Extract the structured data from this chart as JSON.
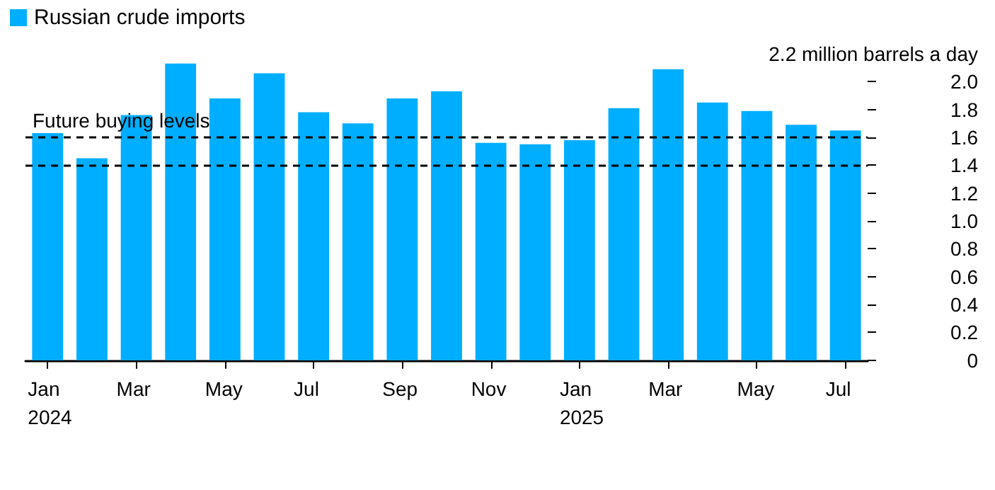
{
  "chart_data": {
    "type": "bar",
    "categories": [
      "Jan\n2024",
      null,
      "Mar",
      null,
      "May",
      null,
      "Jul",
      null,
      "Sep",
      null,
      "Nov",
      null,
      "Jan\n2025",
      null,
      "Mar",
      null,
      "May",
      null,
      "Jul"
    ],
    "series": [
      {
        "name": "Russian crude imports",
        "color": "#00aeff",
        "values": [
          1.63,
          1.45,
          1.76,
          2.13,
          1.88,
          2.06,
          1.78,
          1.7,
          1.88,
          1.93,
          1.56,
          1.55,
          1.58,
          1.81,
          2.09,
          1.85,
          1.79,
          1.69,
          1.65
        ]
      }
    ],
    "ylim": [
      0,
      2.2
    ],
    "yticks": [
      0,
      0.2,
      0.4,
      0.6,
      0.8,
      {
        "value": 1,
        "label": "1.0"
      },
      1.2,
      1.4,
      1.6,
      1.8,
      {
        "value": 2,
        "label": "2.0"
      },
      {
        "value": 2.2,
        "label": "2.2 million barrels a day"
      }
    ],
    "ref_lines": [
      {
        "axis": "y",
        "value": 1.6,
        "label": "Future buying levels",
        "color": "#000000",
        "line_style": "dashed"
      },
      {
        "axis": "y",
        "value": 1.4,
        "label": null,
        "color": "#000000",
        "line_style": "dashed"
      }
    ],
    "legend": "top left",
    "grid": false
  }
}
